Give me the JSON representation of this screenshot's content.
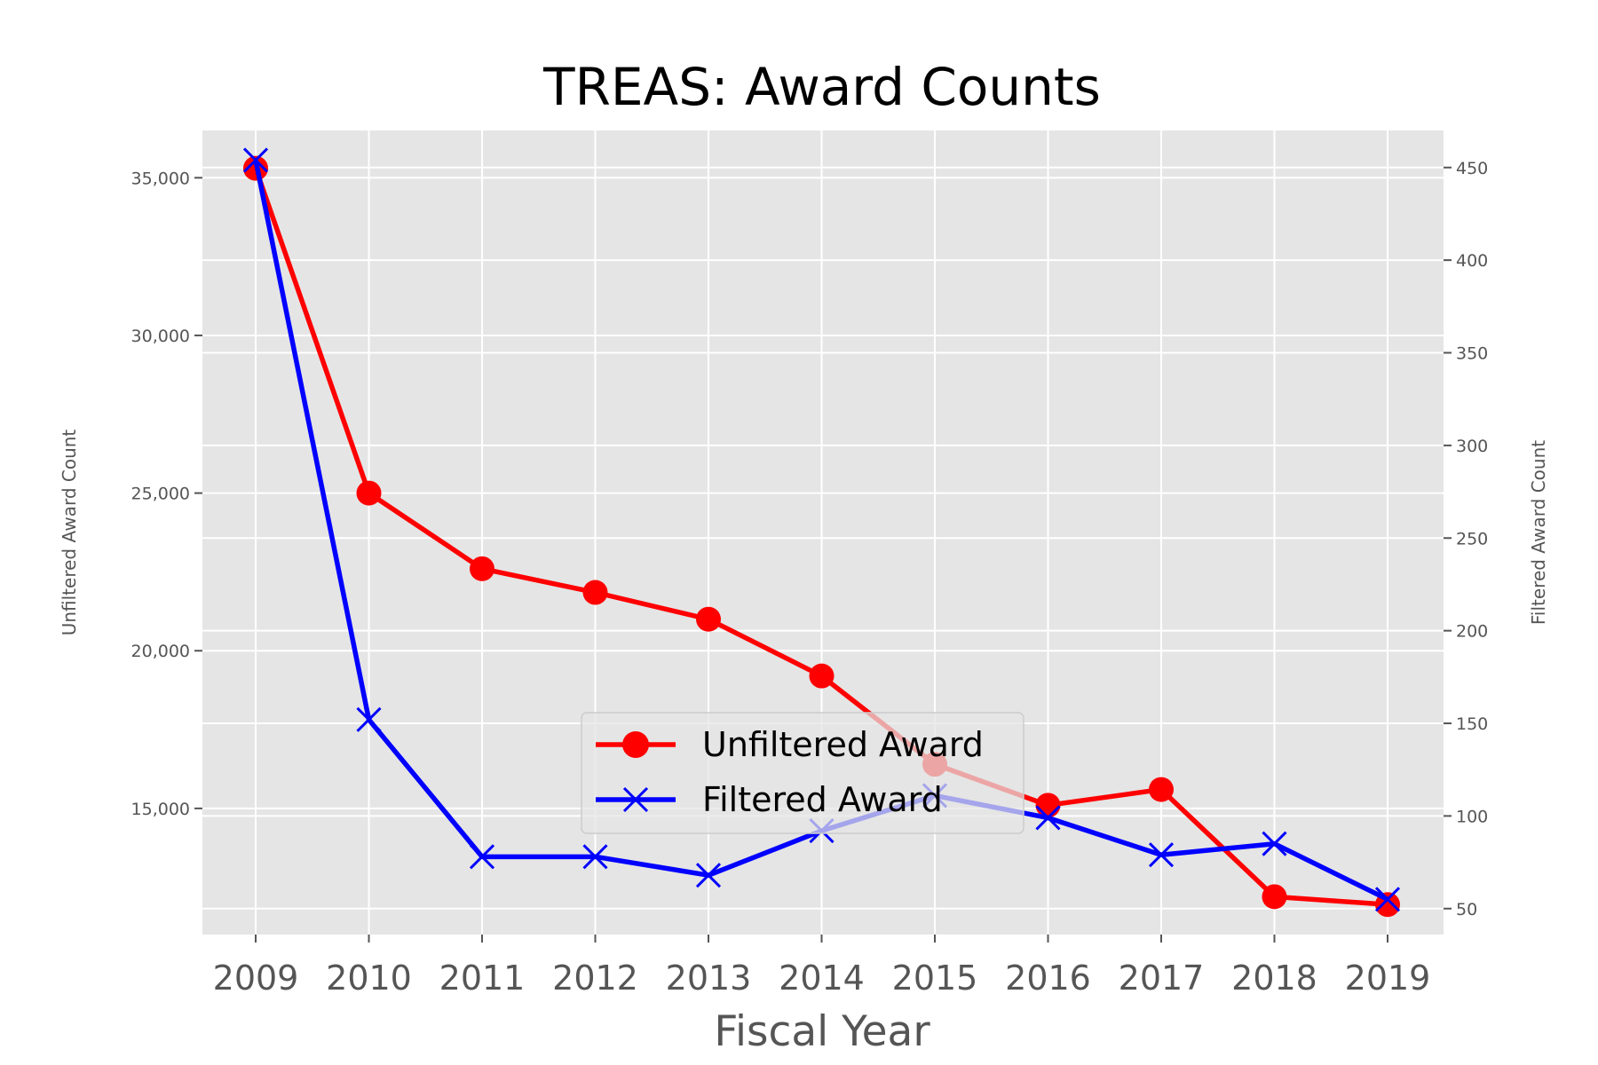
{
  "chart_data": {
    "type": "line",
    "title": "TREAS: Award Counts",
    "xlabel": "Fiscal Year",
    "ylabel_left": "Unfiltered Award Count",
    "ylabel_right": "Filtered Award Count",
    "x": [
      "2009",
      "2010",
      "2011",
      "2012",
      "2013",
      "2014",
      "2015",
      "2016",
      "2017",
      "2018",
      "2019"
    ],
    "ylim_left": [
      11000,
      36500
    ],
    "yticks_left": [
      15000,
      20000,
      25000,
      30000,
      35000
    ],
    "ytick_labels_left": [
      "15,000",
      "20,000",
      "25,000",
      "30,000",
      "35,000"
    ],
    "ylim_right": [
      36,
      470
    ],
    "yticks_right": [
      50,
      100,
      150,
      200,
      250,
      300,
      350,
      400,
      450
    ],
    "ytick_labels_right": [
      "50",
      "100",
      "150",
      "200",
      "250",
      "300",
      "350",
      "400",
      "450"
    ],
    "series": [
      {
        "name": "Unfiltered Award",
        "axis": "left",
        "color": "#ff0000",
        "marker": "circle",
        "values": [
          35300,
          25000,
          22600,
          21850,
          21000,
          19200,
          16400,
          15100,
          15600,
          12200,
          11950
        ]
      },
      {
        "name": "Filtered Award",
        "axis": "right",
        "color": "#0000ff",
        "marker": "x",
        "values": [
          454,
          152,
          78,
          78,
          68,
          92,
          111,
          99,
          79,
          85,
          55
        ]
      }
    ],
    "grid": true,
    "legend": "lower-center",
    "background": "#e5e5e5"
  }
}
